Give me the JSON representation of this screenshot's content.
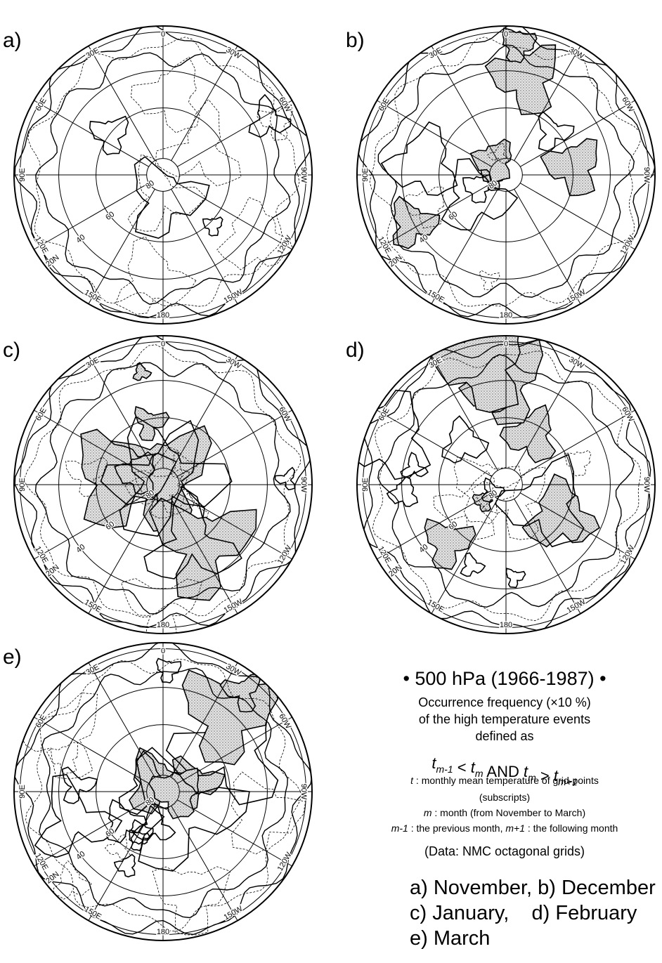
{
  "panels": [
    {
      "label": "a)"
    },
    {
      "label": "b)"
    },
    {
      "label": "c)"
    },
    {
      "label": "d)"
    },
    {
      "label": "e)"
    }
  ],
  "meridian_labels": [
    "0",
    "30W",
    "60W",
    "90W",
    "120W",
    "150W",
    "180",
    "150E",
    "120E",
    "90E",
    "60E",
    "30E"
  ],
  "latitude_labels": [
    "20N",
    "40",
    "60",
    "80"
  ],
  "legend": {
    "title": "• 500 hPa (1966-1987) •",
    "lines": [
      "Occurrence frequency (×10 %)",
      "of the high temperature events",
      "defined as"
    ],
    "formula": [
      {
        "t": "t",
        "sub": "m-1"
      },
      {
        "t": " < "
      },
      {
        "t": "t",
        "sub": "m"
      },
      {
        "t": "  AND  "
      },
      {
        "t": "t",
        "sub": "m"
      },
      {
        "t": " > "
      },
      {
        "t": "t",
        "sub": "m+1"
      }
    ],
    "definitions": [
      {
        "sym": "t",
        "text": " : monthly mean temperature of grid-points"
      },
      {
        "text": "(subscripts)"
      },
      {
        "sym": "m",
        "text": " : month (from November to March)"
      },
      {
        "sym": "m-1",
        "text": " : the previous month,  ",
        "sym2": "m+1",
        "text2": " : the following month"
      }
    ],
    "source": "(Data: NMC octagonal grids)",
    "months": [
      "a) November, b) December",
      "c) January,    d) February",
      "e) March"
    ]
  }
}
